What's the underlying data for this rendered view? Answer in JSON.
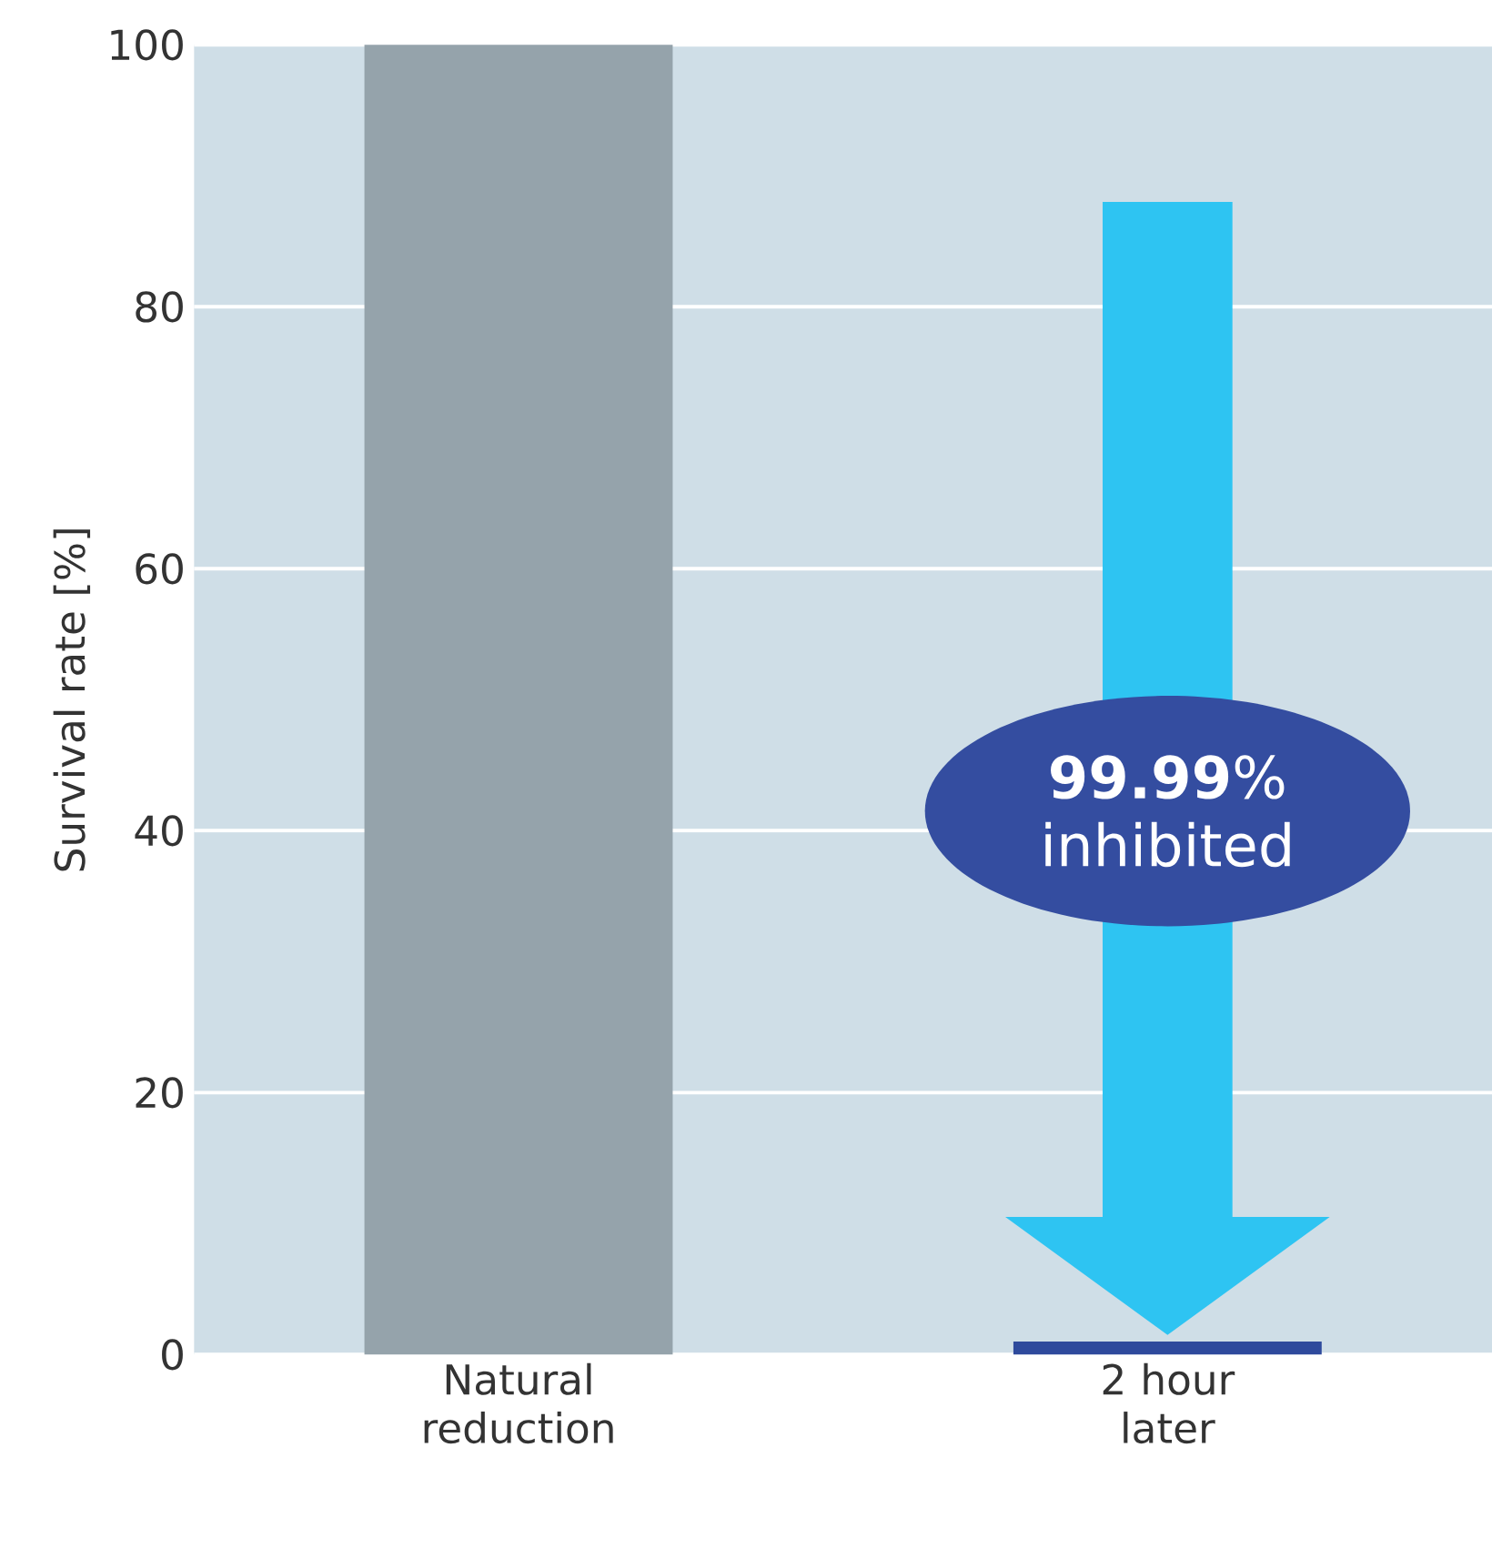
{
  "chart_data": {
    "type": "bar",
    "ylabel": "Survival rate [%]",
    "categories": [
      "Natural reduction",
      "2 hour later"
    ],
    "values": [
      100,
      1
    ],
    "colors": [
      "#95a3ab",
      "#2e4a9c"
    ],
    "ylim": [
      0,
      100
    ],
    "yticks": [
      0,
      20,
      40,
      60,
      80,
      100
    ],
    "grid": "y",
    "annotations": [
      "**99.99**% inhibited"
    ]
  }
}
